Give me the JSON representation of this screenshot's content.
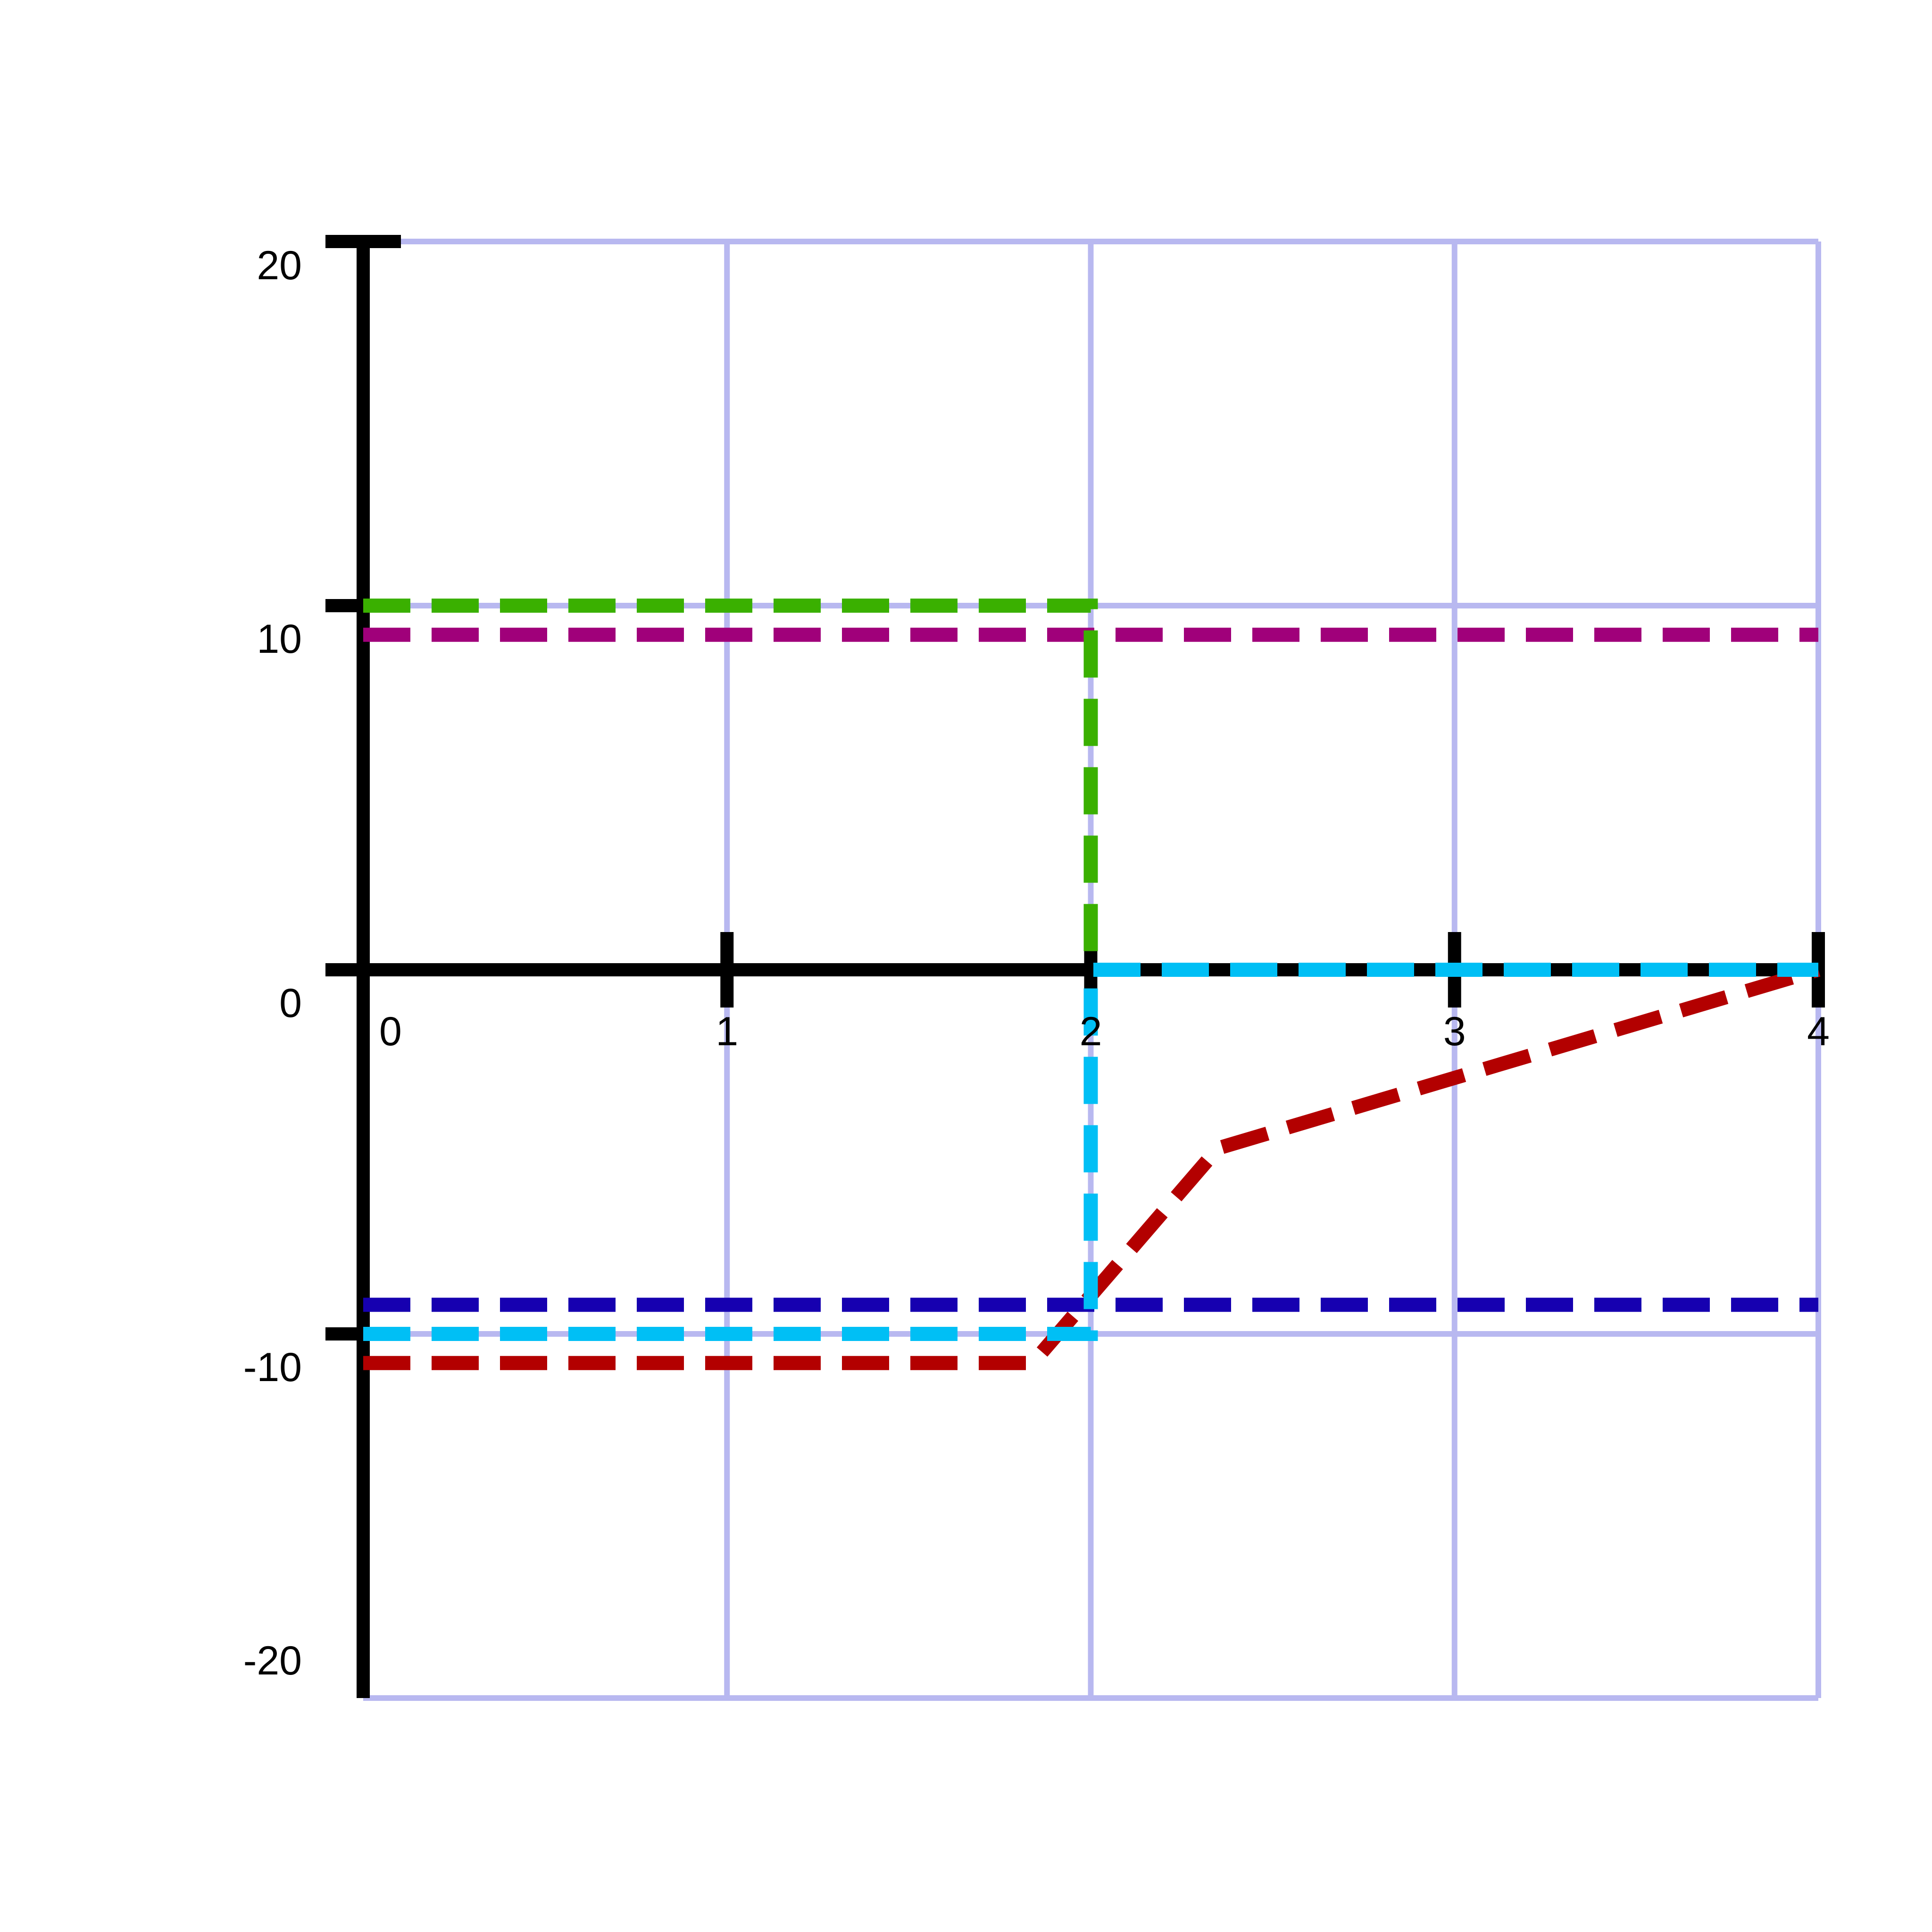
{
  "chart_data": {
    "type": "line",
    "title": "",
    "xlabel": "",
    "ylabel": "",
    "xlim": [
      0,
      4
    ],
    "ylim": [
      -20,
      20
    ],
    "grid": true,
    "x_ticks": [
      "0",
      "1",
      "2",
      "3",
      "4"
    ],
    "y_ticks": [
      "-20",
      "-10",
      "0",
      "10",
      "20"
    ],
    "grid_color": "#b8b8f0",
    "axis_color": "#000000",
    "series": [
      {
        "color": "#b30000",
        "points": [
          [
            0,
            -10.8
          ],
          [
            1.84,
            -10.8
          ],
          [
            2.35,
            -4.9
          ],
          [
            4,
            0
          ]
        ]
      },
      {
        "color": "#a0007a",
        "points": [
          [
            0,
            9.2
          ],
          [
            4,
            9.2
          ]
        ]
      },
      {
        "color": "#1600b0",
        "points": [
          [
            0,
            -9.2
          ],
          [
            4,
            -9.2
          ]
        ]
      },
      {
        "color": "#3ab000",
        "points": [
          [
            0,
            10
          ],
          [
            2,
            10
          ],
          [
            2,
            0
          ],
          [
            4,
            0
          ]
        ]
      },
      {
        "color": "#00bff5",
        "points": [
          [
            0,
            -10
          ],
          [
            2,
            -10
          ],
          [
            2,
            0
          ],
          [
            4,
            0
          ]
        ]
      }
    ]
  }
}
